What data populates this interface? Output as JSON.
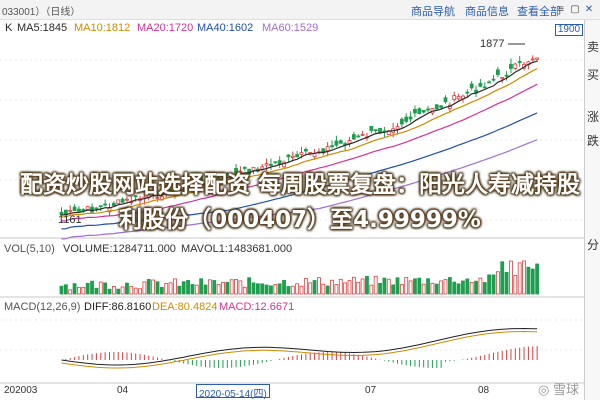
{
  "window": {
    "title_fragment": "033001）（日线）",
    "tabs": [
      "商品导航",
      "商品信息",
      "查看全部"
    ],
    "controls": [
      "≡",
      "▢",
      "✕"
    ]
  },
  "toolbar": {
    "k_label": "K",
    "ma_labels": [
      {
        "text": "MA5:1845",
        "color": "#2b2b2b"
      },
      {
        "text": "MA10:1812",
        "color": "#d08a00"
      },
      {
        "text": "MA20:1720",
        "color": "#d4309a"
      },
      {
        "text": "MA40:1602",
        "color": "#1f4fae"
      },
      {
        "text": "MA60:1529",
        "color": "#a16fd0"
      }
    ],
    "price_flag": "1900"
  },
  "price": {
    "high_label": "1877",
    "low_label": "1161"
  },
  "volume": {
    "labels": [
      {
        "text": "VOL(5,10)",
        "color": "#555555"
      },
      {
        "text": "VOLUME:1284711.000",
        "color": "#333333"
      },
      {
        "text": "MAVOL1:1483681.000",
        "color": "#333333"
      }
    ]
  },
  "macd": {
    "labels": [
      {
        "text": "MACD(12,26,9)",
        "color": "#555555"
      },
      {
        "text": "DIFF:86.8160",
        "color": "#1f1f1f"
      },
      {
        "text": "DEA:80.4824",
        "color": "#d08a00"
      },
      {
        "text": "MACD:12.6671",
        "color": "#d4309a"
      }
    ]
  },
  "x_axis": {
    "labels": [
      "202003",
      "04",
      "2020-05-14(四)",
      "07",
      "08"
    ]
  },
  "side_panel": {
    "chars": [
      "卖",
      "买",
      "涨",
      "跌",
      "分"
    ]
  },
  "headline": {
    "line1": "配资炒股网站选择配资 每周股票复盘：阳光人寿减持股",
    "line2": "利股份（000407）至4.99999%"
  },
  "watermark": "◎ 雪球"
}
